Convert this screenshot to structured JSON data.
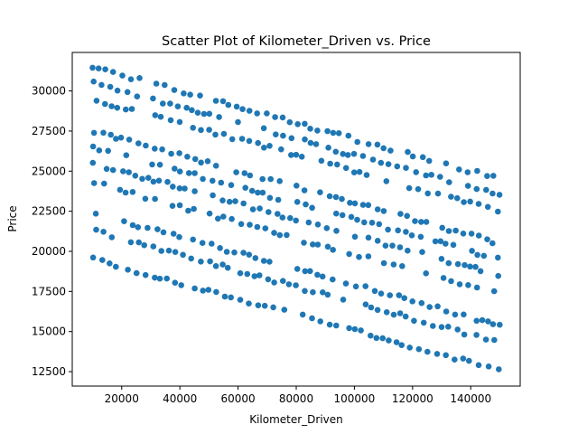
{
  "chart_data": {
    "type": "scatter",
    "title": "Scatter Plot of Kilometer_Driven vs. Price",
    "xlabel": "Kilometer_Driven",
    "ylabel": "Price",
    "xlim": [
      3000,
      157000
    ],
    "ylim": [
      11600,
      32400
    ],
    "x_ticks": [
      20000,
      40000,
      60000,
      80000,
      100000,
      120000,
      140000
    ],
    "x_tick_labels": [
      "20000",
      "40000",
      "60000",
      "80000",
      "100000",
      "120000",
      "140000"
    ],
    "y_ticks": [
      12500,
      15000,
      17500,
      20000,
      22500,
      25000,
      27500,
      30000
    ],
    "y_tick_labels": [
      "12500",
      "15000",
      "17500",
      "20000",
      "22500",
      "25000",
      "27500",
      "30000"
    ],
    "grid": false,
    "legend": "none",
    "marker_color": "#1f77b4",
    "series": [
      {
        "band_description": "ten parallel price bands descending with kilometers",
        "bands": [
          {
            "x_start": 10000,
            "y_start": 31500,
            "x_end": 150000,
            "y_end": 24500
          },
          {
            "x_start": 10000,
            "y_start": 30500,
            "x_end": 150000,
            "y_end": 23500
          },
          {
            "x_start": 10000,
            "y_start": 29500,
            "x_end": 150000,
            "y_end": 22500
          },
          {
            "x_start": 10000,
            "y_start": 27500,
            "x_end": 150000,
            "y_end": 20500
          },
          {
            "x_start": 10000,
            "y_start": 26500,
            "x_end": 150000,
            "y_end": 19500
          },
          {
            "x_start": 10000,
            "y_start": 25500,
            "x_end": 150000,
            "y_end": 18500
          },
          {
            "x_start": 10000,
            "y_start": 24300,
            "x_end": 150000,
            "y_end": 17300
          },
          {
            "x_start": 10000,
            "y_start": 22400,
            "x_end": 150000,
            "y_end": 15400
          },
          {
            "x_start": 10000,
            "y_start": 21300,
            "x_end": 150000,
            "y_end": 14300
          },
          {
            "x_start": 10000,
            "y_start": 19500,
            "x_end": 150000,
            "y_end": 12600
          }
        ]
      }
    ]
  }
}
